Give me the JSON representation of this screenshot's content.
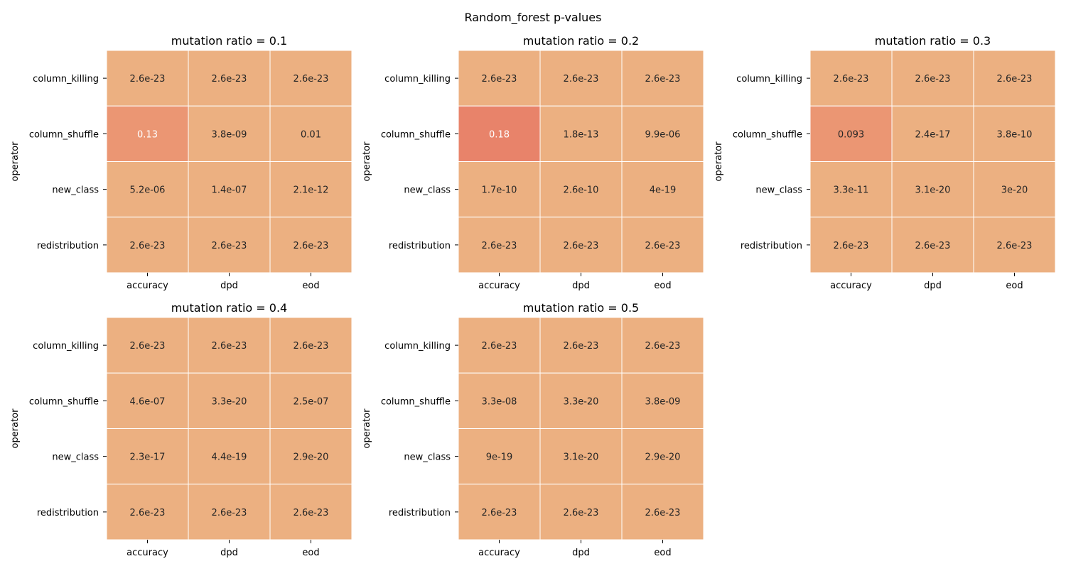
{
  "title": "Random_forest p-values",
  "chart_data": [
    {
      "type": "heatmap",
      "title": "mutation ratio = 0.1",
      "ylabel": "operator",
      "xlabel": "",
      "rows": [
        "column_killing",
        "column_shuffle",
        "new_class",
        "redistribution"
      ],
      "columns": [
        "accuracy",
        "dpd",
        "eod"
      ],
      "values": [
        [
          2.6e-23,
          2.6e-23,
          2.6e-23
        ],
        [
          0.13,
          3.8e-09,
          0.01
        ],
        [
          5.2e-06,
          1.4e-07,
          2.1e-12
        ],
        [
          2.6e-23,
          2.6e-23,
          2.6e-23
        ]
      ],
      "labels": [
        [
          "2.6e-23",
          "2.6e-23",
          "2.6e-23"
        ],
        [
          "0.13",
          "3.8e-09",
          "0.01"
        ],
        [
          "5.2e-06",
          "1.4e-07",
          "2.1e-12"
        ],
        [
          "2.6e-23",
          "2.6e-23",
          "2.6e-23"
        ]
      ]
    },
    {
      "type": "heatmap",
      "title": "mutation ratio = 0.2",
      "ylabel": "operator",
      "xlabel": "",
      "rows": [
        "column_killing",
        "column_shuffle",
        "new_class",
        "redistribution"
      ],
      "columns": [
        "accuracy",
        "dpd",
        "eod"
      ],
      "values": [
        [
          2.6e-23,
          2.6e-23,
          2.6e-23
        ],
        [
          0.18,
          1.8e-13,
          9.9e-06
        ],
        [
          1.7e-10,
          2.6e-10,
          4e-19
        ],
        [
          2.6e-23,
          2.6e-23,
          2.6e-23
        ]
      ],
      "labels": [
        [
          "2.6e-23",
          "2.6e-23",
          "2.6e-23"
        ],
        [
          "0.18",
          "1.8e-13",
          "9.9e-06"
        ],
        [
          "1.7e-10",
          "2.6e-10",
          "4e-19"
        ],
        [
          "2.6e-23",
          "2.6e-23",
          "2.6e-23"
        ]
      ]
    },
    {
      "type": "heatmap",
      "title": "mutation ratio = 0.3",
      "ylabel": "operator",
      "xlabel": "",
      "rows": [
        "column_killing",
        "column_shuffle",
        "new_class",
        "redistribution"
      ],
      "columns": [
        "accuracy",
        "dpd",
        "eod"
      ],
      "values": [
        [
          2.6e-23,
          2.6e-23,
          2.6e-23
        ],
        [
          0.093,
          2.4e-17,
          3.8e-10
        ],
        [
          3.3e-11,
          3.1e-20,
          3e-20
        ],
        [
          2.6e-23,
          2.6e-23,
          2.6e-23
        ]
      ],
      "labels": [
        [
          "2.6e-23",
          "2.6e-23",
          "2.6e-23"
        ],
        [
          "0.093",
          "2.4e-17",
          "3.8e-10"
        ],
        [
          "3.3e-11",
          "3.1e-20",
          "3e-20"
        ],
        [
          "2.6e-23",
          "2.6e-23",
          "2.6e-23"
        ]
      ]
    },
    {
      "type": "heatmap",
      "title": "mutation ratio = 0.4",
      "ylabel": "operator",
      "xlabel": "",
      "rows": [
        "column_killing",
        "column_shuffle",
        "new_class",
        "redistribution"
      ],
      "columns": [
        "accuracy",
        "dpd",
        "eod"
      ],
      "values": [
        [
          2.6e-23,
          2.6e-23,
          2.6e-23
        ],
        [
          4.6e-07,
          3.3e-20,
          2.5e-07
        ],
        [
          2.3e-17,
          4.4e-19,
          2.9e-20
        ],
        [
          2.6e-23,
          2.6e-23,
          2.6e-23
        ]
      ],
      "labels": [
        [
          "2.6e-23",
          "2.6e-23",
          "2.6e-23"
        ],
        [
          "4.6e-07",
          "3.3e-20",
          "2.5e-07"
        ],
        [
          "2.3e-17",
          "4.4e-19",
          "2.9e-20"
        ],
        [
          "2.6e-23",
          "2.6e-23",
          "2.6e-23"
        ]
      ]
    },
    {
      "type": "heatmap",
      "title": "mutation ratio = 0.5",
      "ylabel": "operator",
      "xlabel": "",
      "rows": [
        "column_killing",
        "column_shuffle",
        "new_class",
        "redistribution"
      ],
      "columns": [
        "accuracy",
        "dpd",
        "eod"
      ],
      "values": [
        [
          2.6e-23,
          2.6e-23,
          2.6e-23
        ],
        [
          3.3e-08,
          3.3e-20,
          3.8e-09
        ],
        [
          9e-19,
          3.1e-20,
          2.9e-20
        ],
        [
          2.6e-23,
          2.6e-23,
          2.6e-23
        ]
      ],
      "labels": [
        [
          "2.6e-23",
          "2.6e-23",
          "2.6e-23"
        ],
        [
          "3.3e-08",
          "3.3e-20",
          "3.8e-09"
        ],
        [
          "9e-19",
          "3.1e-20",
          "2.9e-20"
        ],
        [
          "2.6e-23",
          "2.6e-23",
          "2.6e-23"
        ]
      ]
    }
  ],
  "colors": {
    "base": "#ecb081",
    "mid": "#eb9673",
    "high": "#e8836a",
    "text_dark": "#262626",
    "text_light": "#ffffff",
    "cell_border": "#ffffff",
    "axis": "#000000"
  }
}
